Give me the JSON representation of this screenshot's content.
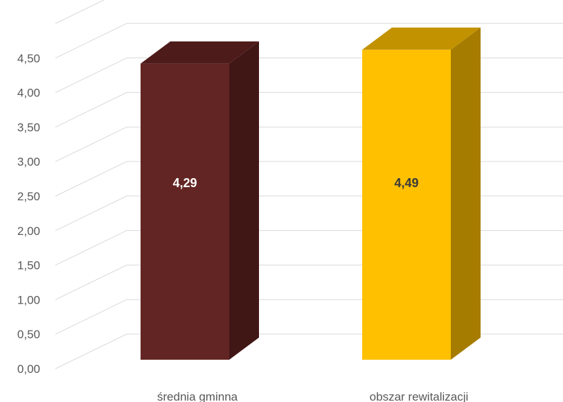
{
  "chart_data": {
    "type": "bar",
    "style": "3d-column",
    "title": "",
    "xlabel": "",
    "ylabel": "",
    "categories": [
      "średnia gminna",
      "obszar rewitalizacji"
    ],
    "values": [
      4.29,
      4.49
    ],
    "data_labels": [
      "4,29",
      "4,49"
    ],
    "ylim": [
      0,
      5
    ],
    "yticks": [
      0,
      0.5,
      1,
      1.5,
      2,
      2.5,
      3,
      3.5,
      4,
      4.5
    ],
    "ytick_labels": [
      "0,00",
      "0,50",
      "1,00",
      "1,50",
      "2,00",
      "2,50",
      "3,00",
      "3,50",
      "4,00",
      "4,50"
    ],
    "grid": true,
    "legend": "none",
    "colors": {
      "bars": [
        {
          "front": "#632523",
          "side": "#411716",
          "top": "#4d1b1a",
          "label": "#ffffff"
        },
        {
          "front": "#ffc000",
          "side": "#a67c00",
          "top": "#c29200",
          "label": "#3a3a3a"
        }
      ],
      "grid": "#d9d9d9",
      "text": "#595959"
    }
  }
}
